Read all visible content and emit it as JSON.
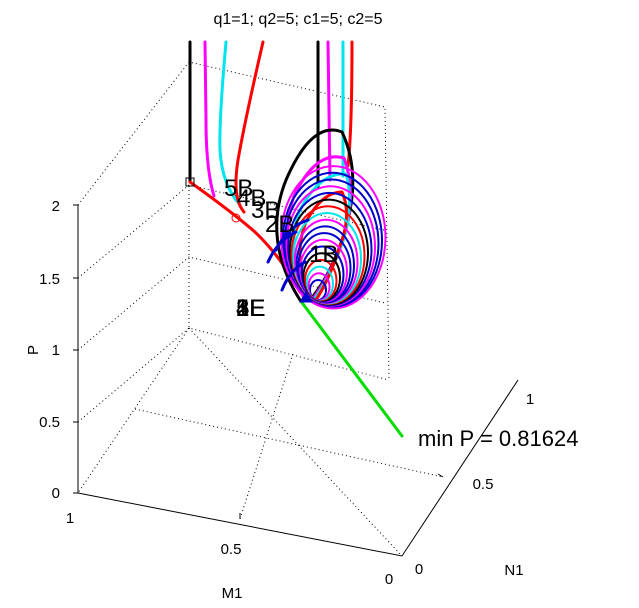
{
  "chart_data": {
    "type": "line",
    "projection": "3d",
    "title": "q1=1; q2=5; c1=5; c2=5",
    "xlabel": "M1",
    "ylabel": "N1",
    "zlabel": "P",
    "xlim": [
      0,
      1
    ],
    "ylim": [
      0,
      1
    ],
    "zlim": [
      0,
      2
    ],
    "grid": true,
    "x_ticks": [
      "0",
      "0.5",
      "1"
    ],
    "y_ticks": [
      "0",
      "0.5",
      "1"
    ],
    "z_ticks": [
      "0",
      "0.5",
      "1",
      "1.5",
      "2"
    ],
    "series_colors": [
      "#000000",
      "#ff00ff",
      "#00e5ee",
      "#ff0000",
      "#0000cc",
      "#00dd00"
    ],
    "point_labels": [
      "5B",
      "4B",
      "3B",
      "2B",
      "1B",
      "1E",
      "2E",
      "3E",
      "4E",
      "5E"
    ],
    "min_annotation": "min P = 0.81624"
  }
}
